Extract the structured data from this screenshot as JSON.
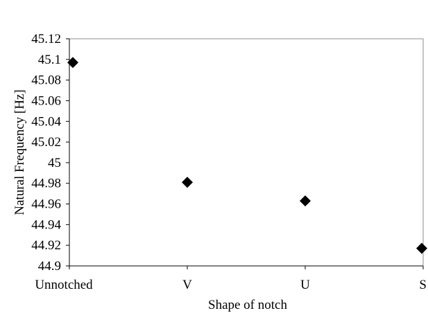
{
  "chart_data": {
    "type": "scatter",
    "categories": [
      "Unnotched",
      "V",
      "U",
      "S"
    ],
    "values": [
      45.097,
      44.981,
      44.963,
      44.917
    ],
    "xlabel": "Shape  of notch",
    "ylabel": "Natural Frequency  [Hz]",
    "ylim": [
      44.9,
      45.12
    ],
    "yticks": [
      "44.9",
      "44.92",
      "44.94",
      "44.96",
      "44.98",
      "45",
      "45.02",
      "45.04",
      "45.06",
      "45.08",
      "45.1",
      "45.12"
    ],
    "marker": "diamond",
    "marker_color": "#000000",
    "grid": false,
    "legend": "none"
  }
}
